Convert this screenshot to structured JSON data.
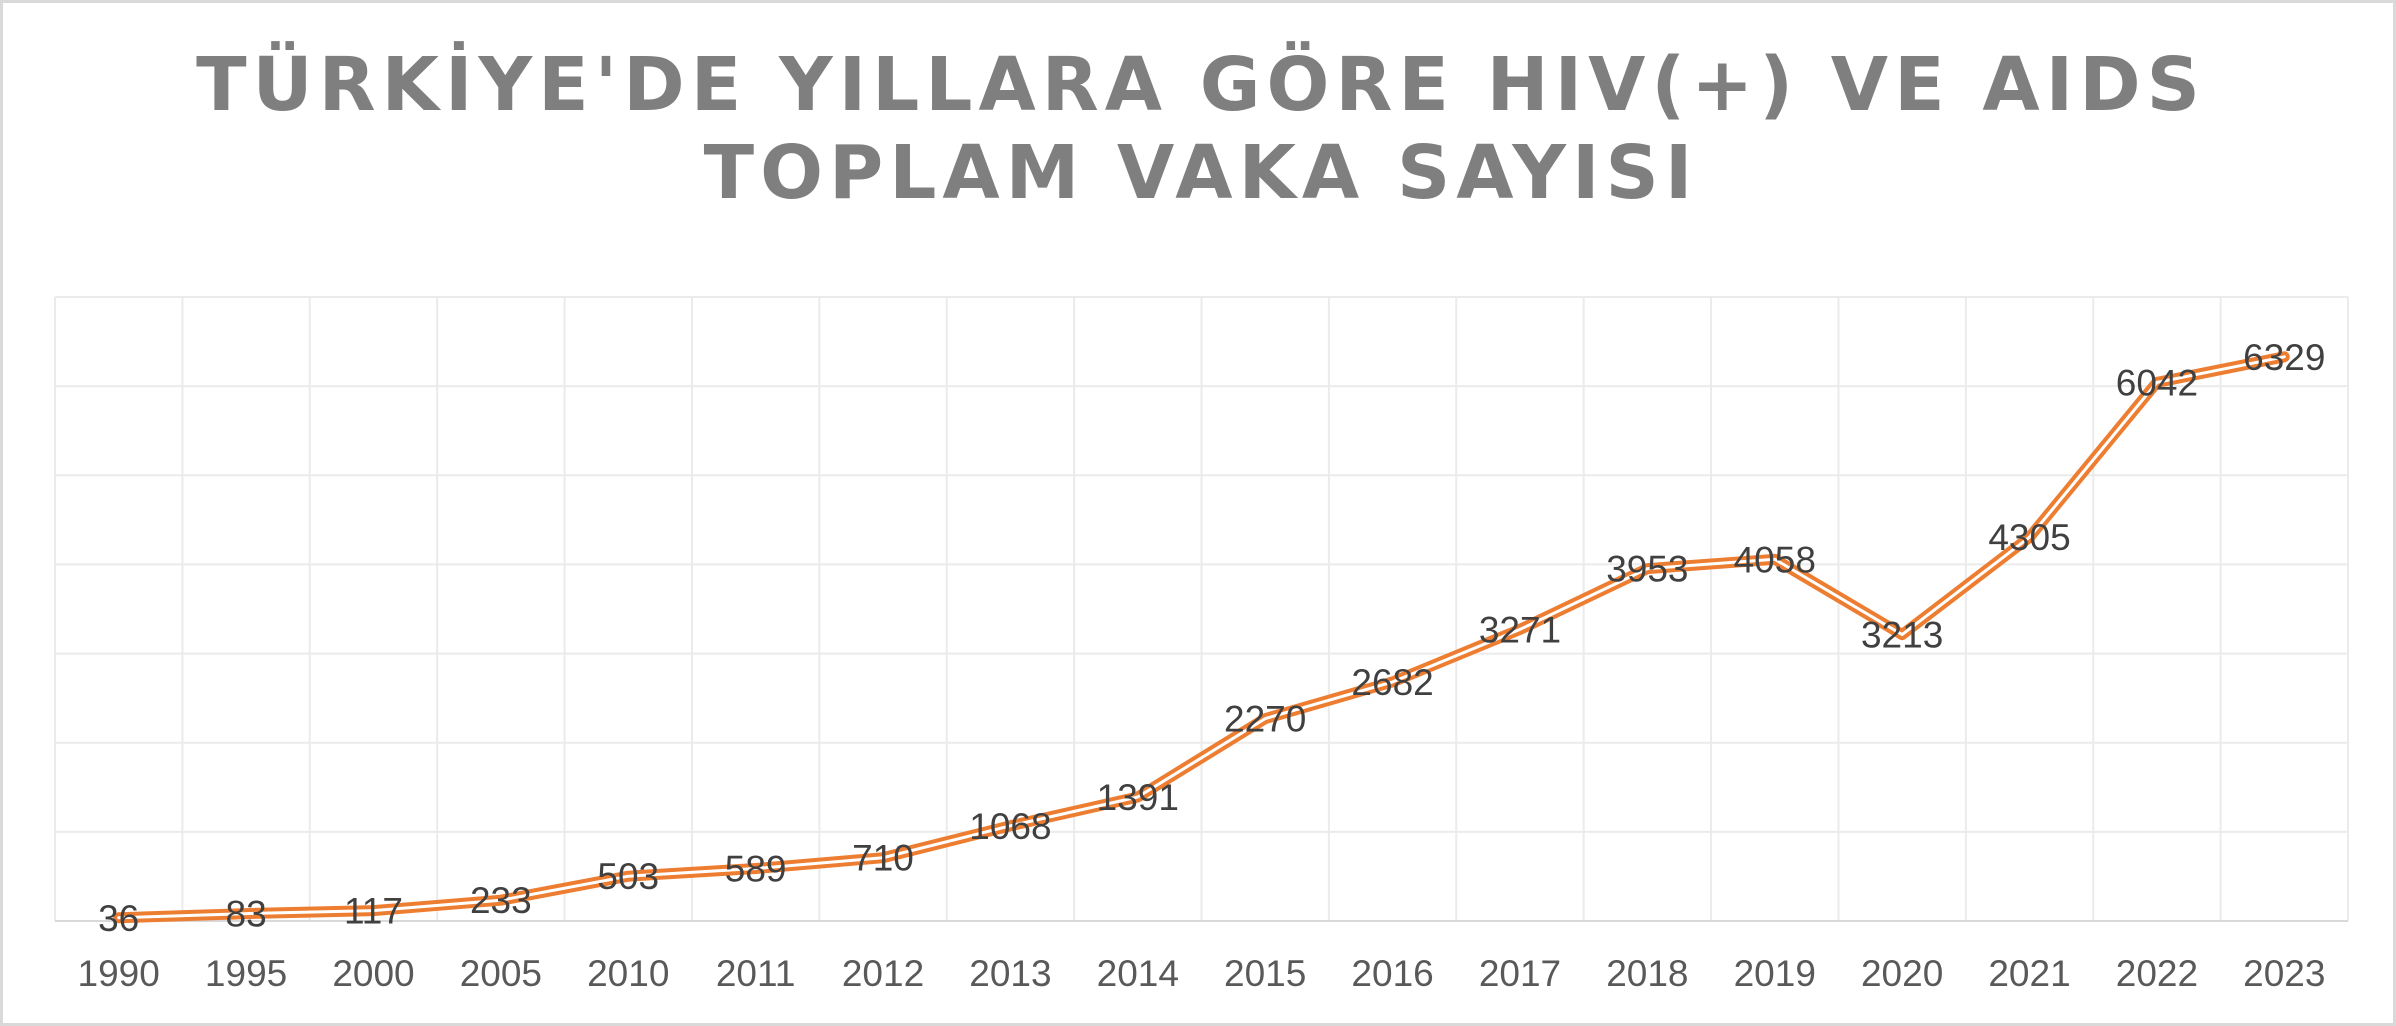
{
  "chart_data": {
    "type": "line",
    "title_lines": [
      "TÜRKİYE'DE YILLARA GÖRE HIV(+) VE AIDS",
      "TOPLAM VAKA SAYISI"
    ],
    "categories": [
      "1990",
      "1995",
      "2000",
      "2005",
      "2010",
      "2011",
      "2012",
      "2013",
      "2014",
      "2015",
      "2016",
      "2017",
      "2018",
      "2019",
      "2020",
      "2021",
      "2022",
      "2023"
    ],
    "series": [
      {
        "values": [
          36,
          83,
          117,
          233,
          503,
          589,
          710,
          1068,
          1391,
          2270,
          2682,
          3271,
          3953,
          4058,
          3213,
          4305,
          6042,
          6329
        ],
        "color": "#ED7D31"
      }
    ],
    "ylim": [
      0,
      7000
    ],
    "y_axis_labels_shown": false,
    "grid": true,
    "data_labels": true,
    "xlabel": "",
    "ylabel": ""
  }
}
